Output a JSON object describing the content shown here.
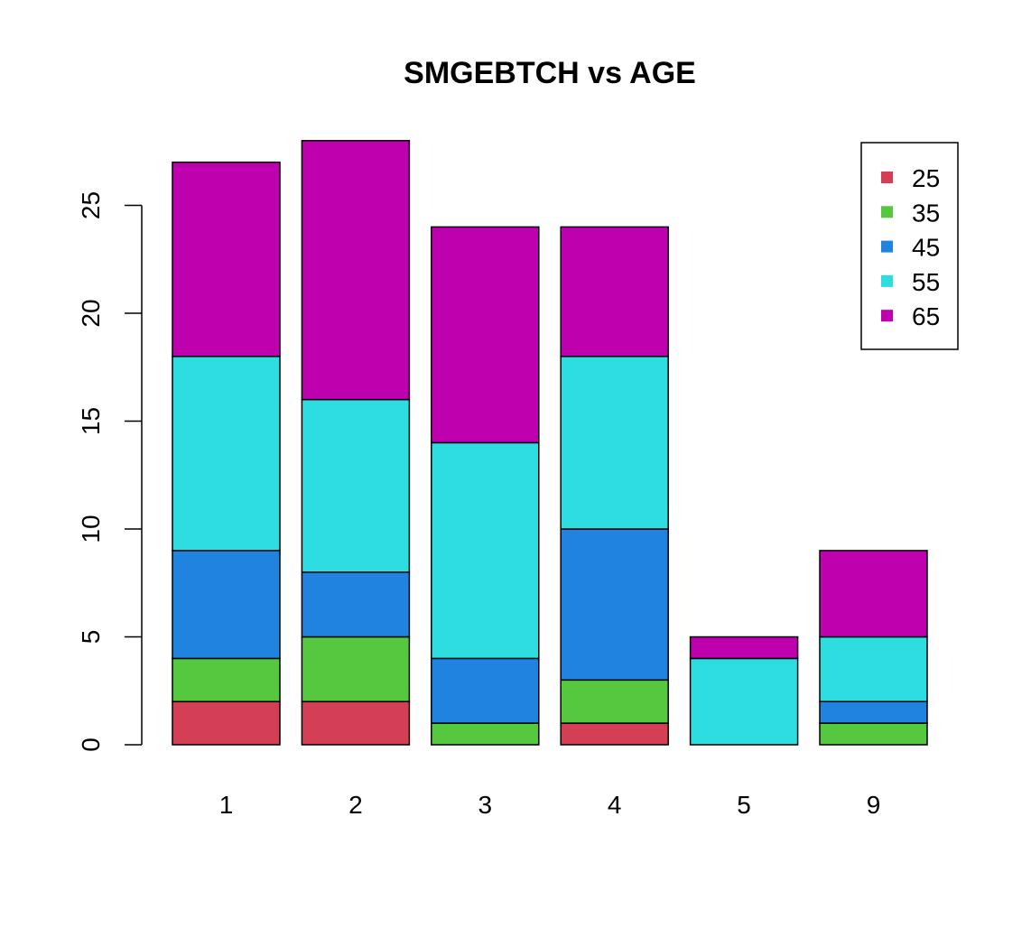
{
  "chart_data": {
    "type": "bar",
    "stacked": true,
    "title": "SMGEBTCH vs AGE",
    "xlabel": "",
    "ylabel": "",
    "categories": [
      "1",
      "2",
      "3",
      "4",
      "5",
      "9"
    ],
    "series": [
      {
        "name": "25",
        "color": "#D43F55",
        "values": [
          2,
          2,
          0,
          1,
          0,
          0
        ]
      },
      {
        "name": "35",
        "color": "#55C840",
        "values": [
          2,
          3,
          1,
          2,
          0,
          1
        ]
      },
      {
        "name": "45",
        "color": "#2183E0",
        "values": [
          5,
          3,
          3,
          7,
          0,
          1
        ]
      },
      {
        "name": "55",
        "color": "#2DDDE0",
        "values": [
          9,
          8,
          10,
          8,
          4,
          3
        ]
      },
      {
        "name": "65",
        "color": "#BF00AF",
        "values": [
          9,
          12,
          10,
          6,
          1,
          4
        ]
      }
    ],
    "y_ticks": [
      "0",
      "5",
      "10",
      "15",
      "20",
      "25"
    ],
    "ylim": [
      0,
      28
    ],
    "grid": false,
    "legend_position": "top-right"
  }
}
